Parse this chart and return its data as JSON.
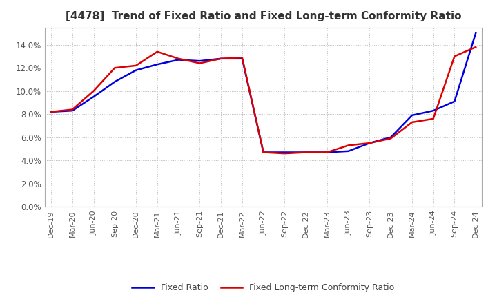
{
  "title": "[4478]  Trend of Fixed Ratio and Fixed Long-term Conformity Ratio",
  "x_labels": [
    "Dec-19",
    "Mar-20",
    "Jun-20",
    "Sep-20",
    "Dec-20",
    "Mar-21",
    "Jun-21",
    "Sep-21",
    "Dec-21",
    "Mar-22",
    "Jun-22",
    "Sep-22",
    "Dec-22",
    "Mar-23",
    "Jun-23",
    "Sep-23",
    "Dec-23",
    "Mar-24",
    "Jun-24",
    "Sep-24",
    "Dec-24"
  ],
  "fixed_ratio": [
    0.082,
    0.083,
    0.095,
    0.108,
    0.118,
    0.123,
    0.127,
    0.126,
    0.128,
    0.128,
    0.047,
    0.047,
    0.047,
    0.047,
    0.048,
    0.055,
    0.06,
    0.079,
    0.083,
    0.091,
    0.15
  ],
  "fixed_lt_conformity": [
    0.082,
    0.084,
    0.1,
    0.12,
    0.122,
    0.134,
    0.128,
    0.124,
    0.128,
    0.129,
    0.047,
    0.046,
    0.047,
    0.047,
    0.053,
    0.055,
    0.059,
    0.073,
    0.076,
    0.13,
    0.138
  ],
  "fixed_ratio_color": "#0000dd",
  "fixed_lt_color": "#dd0000",
  "ylim": [
    0.0,
    0.155
  ],
  "yticks": [
    0.0,
    0.02,
    0.04,
    0.06,
    0.08,
    0.1,
    0.12,
    0.14
  ],
  "grid_color": "#bbbbbb",
  "background_color": "#ffffff",
  "title_color": "#333333",
  "legend_fixed_ratio": "Fixed Ratio",
  "legend_fixed_lt": "Fixed Long-term Conformity Ratio"
}
